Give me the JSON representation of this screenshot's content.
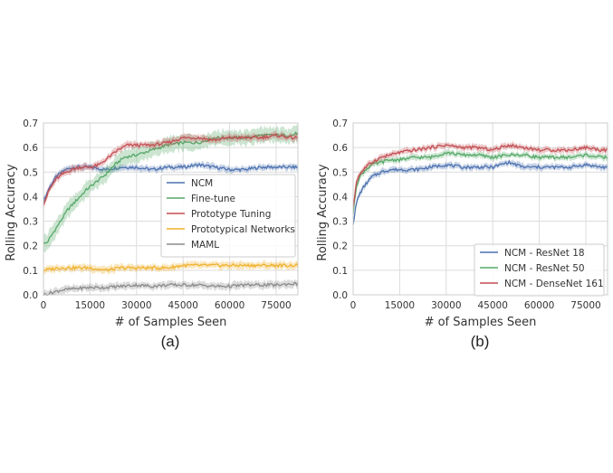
{
  "chart_data": [
    {
      "type": "line",
      "panel_label": "(a)",
      "xlabel": "# of Samples Seen",
      "ylabel": "Rolling Accuracy",
      "xlim": [
        0,
        82000
      ],
      "ylim": [
        0,
        0.7
      ],
      "xticks": [
        "0",
        "15000",
        "30000",
        "45000",
        "60000",
        "75000"
      ],
      "yticks": [
        "0.0",
        "0.1",
        "0.2",
        "0.3",
        "0.4",
        "0.5",
        "0.6",
        "0.7"
      ],
      "grid": true,
      "legend_position": "right-middle",
      "series": [
        {
          "name": "NCM",
          "color": "#4c72b0",
          "x": [
            0,
            2000,
            4000,
            7000,
            10000,
            15000,
            20000,
            25000,
            30000,
            35000,
            40000,
            45000,
            50000,
            55000,
            60000,
            65000,
            70000,
            75000,
            80000,
            82000
          ],
          "y": [
            0.38,
            0.44,
            0.48,
            0.51,
            0.52,
            0.52,
            0.51,
            0.52,
            0.52,
            0.51,
            0.52,
            0.52,
            0.53,
            0.52,
            0.51,
            0.51,
            0.52,
            0.52,
            0.52,
            0.52
          ],
          "band": 0.012
        },
        {
          "name": "Fine-tune",
          "color": "#55a868",
          "x": [
            0,
            1000,
            3000,
            5000,
            8000,
            11000,
            14000,
            17000,
            20000,
            23000,
            26000,
            30000,
            35000,
            40000,
            45000,
            50000,
            55000,
            60000,
            65000,
            70000,
            75000,
            80000,
            82000
          ],
          "y": [
            0.21,
            0.21,
            0.25,
            0.29,
            0.35,
            0.39,
            0.43,
            0.46,
            0.49,
            0.53,
            0.56,
            0.57,
            0.59,
            0.61,
            0.62,
            0.62,
            0.64,
            0.64,
            0.64,
            0.65,
            0.65,
            0.65,
            0.66
          ],
          "band": 0.03
        },
        {
          "name": "Prototype Tuning",
          "color": "#c44e52",
          "x": [
            0,
            2000,
            4000,
            6000,
            9000,
            12000,
            15000,
            18000,
            21000,
            24000,
            27000,
            30000,
            35000,
            40000,
            45000,
            50000,
            55000,
            60000,
            65000,
            70000,
            75000,
            80000,
            82000
          ],
          "y": [
            0.37,
            0.43,
            0.47,
            0.49,
            0.51,
            0.52,
            0.52,
            0.53,
            0.56,
            0.59,
            0.61,
            0.61,
            0.61,
            0.62,
            0.64,
            0.64,
            0.63,
            0.64,
            0.64,
            0.64,
            0.65,
            0.64,
            0.64
          ],
          "band": 0.014
        },
        {
          "name": "Prototypical Networks",
          "color": "#f0b12b",
          "x": [
            0,
            5000,
            10000,
            15000,
            20000,
            25000,
            30000,
            35000,
            40000,
            45000,
            50000,
            55000,
            60000,
            65000,
            70000,
            75000,
            80000,
            82000
          ],
          "y": [
            0.1,
            0.11,
            0.11,
            0.11,
            0.1,
            0.11,
            0.11,
            0.11,
            0.11,
            0.12,
            0.12,
            0.12,
            0.12,
            0.12,
            0.12,
            0.12,
            0.12,
            0.12
          ],
          "band": 0.014
        },
        {
          "name": "MAML",
          "color": "#8c8c8c",
          "x": [
            0,
            3000,
            6000,
            10000,
            15000,
            20000,
            25000,
            30000,
            35000,
            40000,
            45000,
            50000,
            55000,
            60000,
            65000,
            70000,
            75000,
            80000,
            82000
          ],
          "y": [
            0.0,
            0.01,
            0.02,
            0.025,
            0.03,
            0.03,
            0.035,
            0.04,
            0.035,
            0.04,
            0.04,
            0.04,
            0.035,
            0.035,
            0.04,
            0.04,
            0.04,
            0.045,
            0.045
          ],
          "band": 0.014
        }
      ]
    },
    {
      "type": "line",
      "panel_label": "(b)",
      "xlabel": "# of Samples Seen",
      "ylabel": "Rolling Accuracy",
      "xlim": [
        0,
        82000
      ],
      "ylim": [
        0,
        0.7
      ],
      "xticks": [
        "0",
        "15000",
        "30000",
        "45000",
        "60000",
        "75000"
      ],
      "yticks": [
        "0.0",
        "0.1",
        "0.2",
        "0.3",
        "0.4",
        "0.5",
        "0.6",
        "0.7"
      ],
      "grid": true,
      "legend_position": "bottom-right",
      "series": [
        {
          "name": "NCM - ResNet 18",
          "color": "#4c72b0",
          "x": [
            0,
            1000,
            2000,
            4000,
            6000,
            9000,
            12000,
            15000,
            20000,
            25000,
            30000,
            35000,
            40000,
            45000,
            50000,
            55000,
            60000,
            65000,
            70000,
            75000,
            80000,
            82000
          ],
          "y": [
            0.29,
            0.37,
            0.41,
            0.45,
            0.48,
            0.5,
            0.51,
            0.51,
            0.51,
            0.52,
            0.53,
            0.52,
            0.52,
            0.52,
            0.54,
            0.52,
            0.52,
            0.52,
            0.52,
            0.53,
            0.52,
            0.52
          ],
          "band": 0.012
        },
        {
          "name": "NCM - ResNet 50",
          "color": "#55a868",
          "x": [
            0,
            1000,
            2000,
            4000,
            6000,
            9000,
            12000,
            15000,
            20000,
            25000,
            30000,
            35000,
            40000,
            45000,
            50000,
            55000,
            60000,
            65000,
            70000,
            75000,
            80000,
            82000
          ],
          "y": [
            0.33,
            0.44,
            0.48,
            0.51,
            0.53,
            0.54,
            0.55,
            0.55,
            0.56,
            0.56,
            0.58,
            0.57,
            0.57,
            0.56,
            0.57,
            0.57,
            0.56,
            0.56,
            0.56,
            0.57,
            0.56,
            0.56
          ],
          "band": 0.012
        },
        {
          "name": "NCM - DenseNet 161",
          "color": "#c44e52",
          "x": [
            0,
            1000,
            2000,
            4000,
            6000,
            9000,
            12000,
            15000,
            20000,
            25000,
            30000,
            35000,
            40000,
            45000,
            50000,
            55000,
            60000,
            65000,
            70000,
            75000,
            80000,
            82000
          ],
          "y": [
            0.35,
            0.46,
            0.49,
            0.52,
            0.54,
            0.56,
            0.57,
            0.58,
            0.59,
            0.6,
            0.61,
            0.6,
            0.6,
            0.59,
            0.61,
            0.6,
            0.59,
            0.59,
            0.59,
            0.6,
            0.59,
            0.59
          ],
          "band": 0.012
        }
      ]
    }
  ]
}
